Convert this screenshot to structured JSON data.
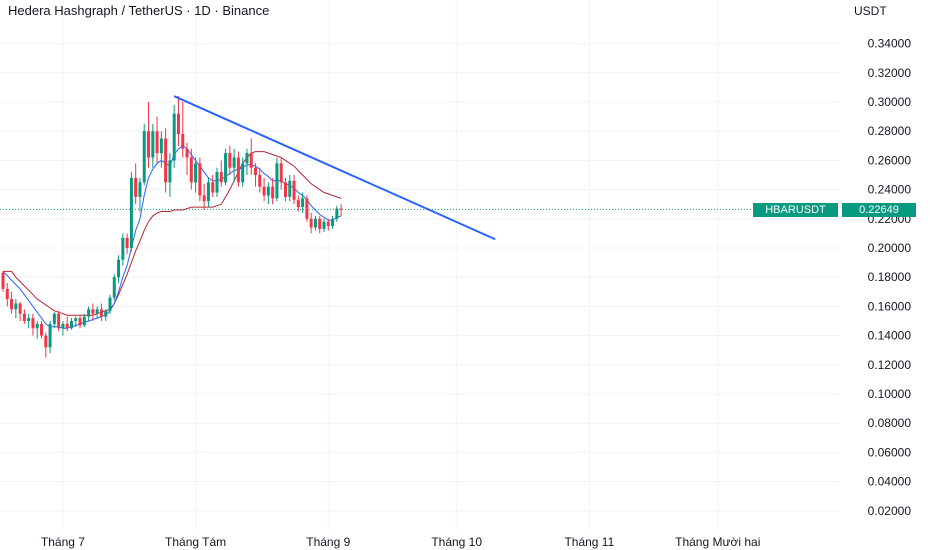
{
  "header": {
    "title": "Hedera Hashgraph / TetherUS · 1D · Binance",
    "currency": "USDT"
  },
  "price_tag": {
    "symbol": "HBARUSDT",
    "price": "0.22649",
    "color": "#089981"
  },
  "colors": {
    "up": "#089981",
    "down": "#f23645",
    "trendline": "#2962ff",
    "indicator_fast": "#2962ff",
    "indicator_slow": "#b22833",
    "grid": "#f0f3fa",
    "current_price_line": "#089981"
  },
  "chart_data": {
    "type": "candlestick",
    "title": "Hedera Hashgraph / TetherUS · 1D · Binance",
    "ylabel": "USDT",
    "ylim": [
      0.0,
      0.36
    ],
    "y_ticks": [
      "0.34000",
      "0.32000",
      "0.30000",
      "0.28000",
      "0.26000",
      "0.24000",
      "0.22000",
      "0.20000",
      "0.18000",
      "0.16000",
      "0.14000",
      "0.12000",
      "0.10000",
      "0.08000",
      "0.06000",
      "0.04000",
      "0.02000"
    ],
    "x_ticks": [
      {
        "label": "Tháng 7",
        "day": 14
      },
      {
        "label": "Tháng Tám",
        "day": 45
      },
      {
        "label": "Tháng 9",
        "day": 76
      },
      {
        "label": "Tháng 10",
        "day": 106
      },
      {
        "label": "Tháng 11",
        "day": 137
      },
      {
        "label": "Tháng Mười hai",
        "day": 167
      }
    ],
    "grid": true,
    "current_price": 0.22649,
    "candles": [
      [
        0.183,
        0.184,
        0.17,
        0.172
      ],
      [
        0.172,
        0.176,
        0.16,
        0.165
      ],
      [
        0.165,
        0.17,
        0.155,
        0.158
      ],
      [
        0.158,
        0.165,
        0.152,
        0.162
      ],
      [
        0.162,
        0.163,
        0.15,
        0.155
      ],
      [
        0.155,
        0.158,
        0.148,
        0.15
      ],
      [
        0.15,
        0.155,
        0.145,
        0.152
      ],
      [
        0.152,
        0.155,
        0.14,
        0.145
      ],
      [
        0.145,
        0.15,
        0.138,
        0.148
      ],
      [
        0.148,
        0.15,
        0.138,
        0.14
      ],
      [
        0.14,
        0.142,
        0.125,
        0.132
      ],
      [
        0.132,
        0.15,
        0.128,
        0.148
      ],
      [
        0.148,
        0.156,
        0.145,
        0.155
      ],
      [
        0.155,
        0.157,
        0.143,
        0.145
      ],
      [
        0.145,
        0.15,
        0.14,
        0.148
      ],
      [
        0.148,
        0.153,
        0.143,
        0.145
      ],
      [
        0.145,
        0.152,
        0.144,
        0.15
      ],
      [
        0.15,
        0.153,
        0.146,
        0.152
      ],
      [
        0.152,
        0.154,
        0.145,
        0.147
      ],
      [
        0.147,
        0.155,
        0.146,
        0.153
      ],
      [
        0.153,
        0.16,
        0.15,
        0.158
      ],
      [
        0.158,
        0.162,
        0.15,
        0.155
      ],
      [
        0.155,
        0.16,
        0.152,
        0.158
      ],
      [
        0.158,
        0.162,
        0.15,
        0.153
      ],
      [
        0.153,
        0.158,
        0.15,
        0.157
      ],
      [
        0.157,
        0.168,
        0.155,
        0.166
      ],
      [
        0.166,
        0.182,
        0.164,
        0.18
      ],
      [
        0.18,
        0.195,
        0.176,
        0.192
      ],
      [
        0.192,
        0.21,
        0.188,
        0.207
      ],
      [
        0.207,
        0.21,
        0.196,
        0.2
      ],
      [
        0.2,
        0.252,
        0.198,
        0.248
      ],
      [
        0.248,
        0.258,
        0.23,
        0.235
      ],
      [
        0.235,
        0.248,
        0.225,
        0.245
      ],
      [
        0.245,
        0.285,
        0.243,
        0.28
      ],
      [
        0.28,
        0.3,
        0.255,
        0.262
      ],
      [
        0.262,
        0.285,
        0.255,
        0.28
      ],
      [
        0.28,
        0.29,
        0.258,
        0.265
      ],
      [
        0.265,
        0.28,
        0.255,
        0.275
      ],
      [
        0.275,
        0.282,
        0.238,
        0.245
      ],
      [
        0.245,
        0.265,
        0.235,
        0.26
      ],
      [
        0.26,
        0.298,
        0.255,
        0.292
      ],
      [
        0.292,
        0.304,
        0.27,
        0.278
      ],
      [
        0.278,
        0.3,
        0.262,
        0.268
      ],
      [
        0.268,
        0.272,
        0.25,
        0.262
      ],
      [
        0.262,
        0.268,
        0.24,
        0.245
      ],
      [
        0.245,
        0.262,
        0.238,
        0.258
      ],
      [
        0.258,
        0.262,
        0.232,
        0.236
      ],
      [
        0.236,
        0.244,
        0.226,
        0.232
      ],
      [
        0.232,
        0.248,
        0.228,
        0.245
      ],
      [
        0.245,
        0.25,
        0.235,
        0.238
      ],
      [
        0.238,
        0.255,
        0.235,
        0.252
      ],
      [
        0.252,
        0.26,
        0.242,
        0.245
      ],
      [
        0.245,
        0.268,
        0.243,
        0.265
      ],
      [
        0.265,
        0.27,
        0.25,
        0.255
      ],
      [
        0.255,
        0.268,
        0.245,
        0.262
      ],
      [
        0.262,
        0.266,
        0.242,
        0.245
      ],
      [
        0.245,
        0.262,
        0.242,
        0.258
      ],
      [
        0.258,
        0.268,
        0.25,
        0.265
      ],
      [
        0.265,
        0.275,
        0.25,
        0.255
      ],
      [
        0.255,
        0.258,
        0.242,
        0.25
      ],
      [
        0.25,
        0.255,
        0.238,
        0.242
      ],
      [
        0.242,
        0.248,
        0.232,
        0.236
      ],
      [
        0.236,
        0.245,
        0.23,
        0.242
      ],
      [
        0.242,
        0.248,
        0.23,
        0.234
      ],
      [
        0.234,
        0.262,
        0.232,
        0.258
      ],
      [
        0.258,
        0.262,
        0.24,
        0.245
      ],
      [
        0.245,
        0.248,
        0.232,
        0.235
      ],
      [
        0.235,
        0.25,
        0.232,
        0.246
      ],
      [
        0.246,
        0.25,
        0.23,
        0.233
      ],
      [
        0.233,
        0.236,
        0.225,
        0.228
      ],
      [
        0.228,
        0.238,
        0.224,
        0.234
      ],
      [
        0.234,
        0.236,
        0.218,
        0.22
      ],
      [
        0.22,
        0.224,
        0.21,
        0.214
      ],
      [
        0.214,
        0.222,
        0.212,
        0.22
      ],
      [
        0.22,
        0.222,
        0.21,
        0.213
      ],
      [
        0.213,
        0.22,
        0.211,
        0.218
      ],
      [
        0.218,
        0.22,
        0.212,
        0.215
      ],
      [
        0.215,
        0.222,
        0.213,
        0.22
      ],
      [
        0.22,
        0.229,
        0.218,
        0.227
      ],
      [
        0.227,
        0.23,
        0.222,
        0.2265
      ]
    ],
    "indicator_fast": [
      0.184,
      0.181,
      0.178,
      0.175,
      0.172,
      0.168,
      0.164,
      0.16,
      0.156,
      0.152,
      0.148,
      0.146,
      0.146,
      0.146,
      0.145,
      0.145,
      0.146,
      0.147,
      0.148,
      0.149,
      0.15,
      0.151,
      0.152,
      0.153,
      0.154,
      0.157,
      0.162,
      0.17,
      0.18,
      0.188,
      0.2,
      0.212,
      0.22,
      0.236,
      0.248,
      0.254,
      0.258,
      0.26,
      0.258,
      0.256,
      0.264,
      0.268,
      0.27,
      0.268,
      0.264,
      0.26,
      0.256,
      0.252,
      0.248,
      0.246,
      0.246,
      0.247,
      0.249,
      0.251,
      0.253,
      0.254,
      0.255,
      0.257,
      0.257,
      0.256,
      0.254,
      0.251,
      0.249,
      0.246,
      0.246,
      0.246,
      0.244,
      0.243,
      0.241,
      0.238,
      0.236,
      0.233,
      0.229,
      0.226,
      0.223,
      0.221,
      0.219,
      0.219,
      0.221,
      0.222
    ],
    "indicator_slow": [
      0.184,
      0.184,
      0.184,
      0.18,
      0.177,
      0.174,
      0.171,
      0.168,
      0.165,
      0.163,
      0.161,
      0.159,
      0.157,
      0.156,
      0.155,
      0.154,
      0.154,
      0.154,
      0.154,
      0.154,
      0.154,
      0.154,
      0.155,
      0.156,
      0.157,
      0.158,
      0.162,
      0.168,
      0.175,
      0.182,
      0.19,
      0.198,
      0.205,
      0.212,
      0.218,
      0.222,
      0.224,
      0.225,
      0.225,
      0.225,
      0.226,
      0.226,
      0.226,
      0.227,
      0.228,
      0.228,
      0.228,
      0.228,
      0.228,
      0.228,
      0.229,
      0.23,
      0.235,
      0.24,
      0.246,
      0.252,
      0.258,
      0.262,
      0.265,
      0.266,
      0.266,
      0.266,
      0.265,
      0.264,
      0.263,
      0.262,
      0.26,
      0.258,
      0.256,
      0.253,
      0.25,
      0.247,
      0.244,
      0.242,
      0.24,
      0.238,
      0.237,
      0.236,
      0.235,
      0.234
    ],
    "trendline": {
      "start": {
        "day": 40,
        "price": 0.304
      },
      "end": {
        "day": 115,
        "price": 0.206
      }
    }
  }
}
